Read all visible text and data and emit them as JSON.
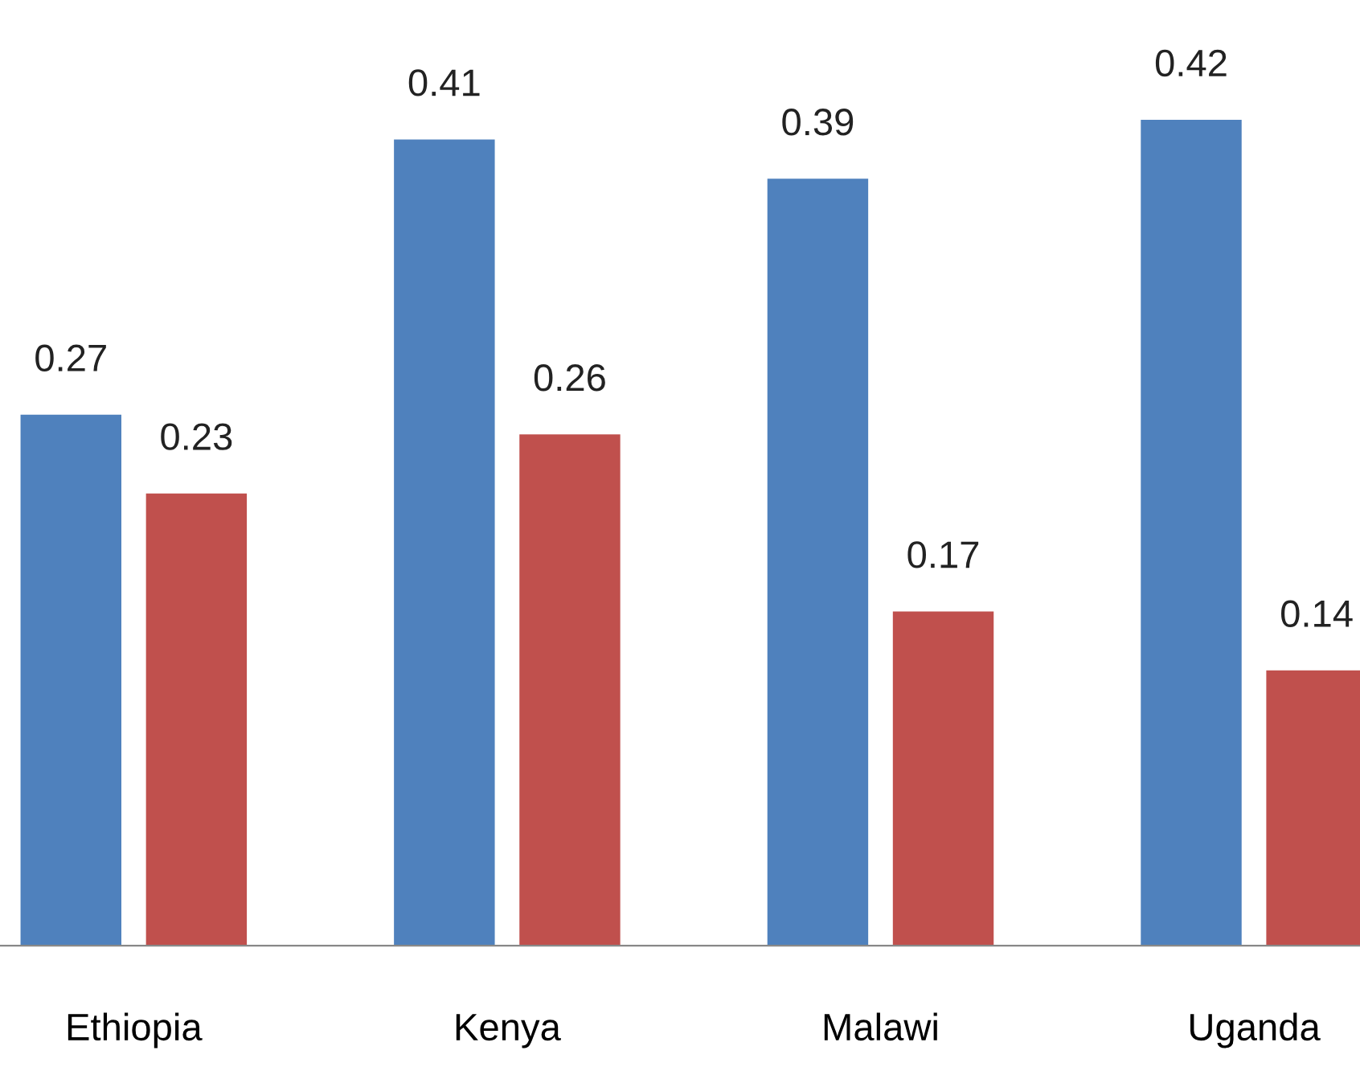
{
  "chart_data": {
    "type": "bar",
    "categories": [
      "Ethiopia",
      "Kenya",
      "Malawi",
      "Uganda"
    ],
    "series": [
      {
        "color": "#4f81bd",
        "values": [
          0.27,
          0.41,
          0.39,
          0.42
        ]
      },
      {
        "color": "#c0504d",
        "values": [
          0.23,
          0.26,
          0.17,
          0.14
        ]
      }
    ],
    "data_labels": true,
    "tick_labels": "x",
    "grid": false,
    "legend": false
  }
}
